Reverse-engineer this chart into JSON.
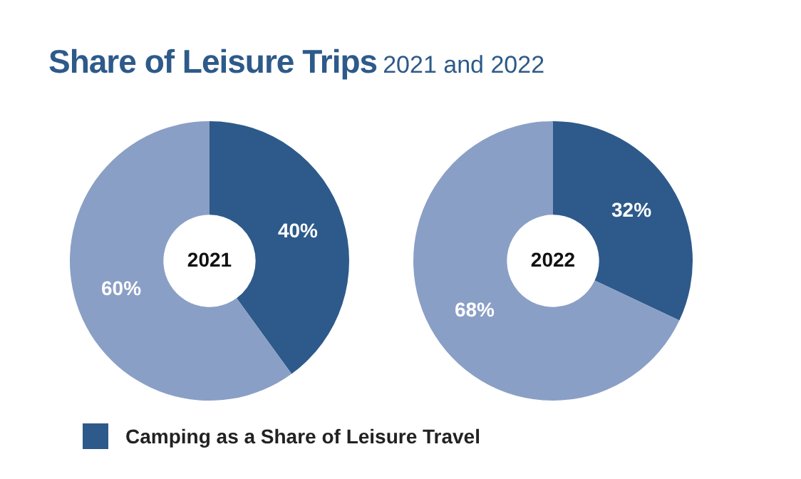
{
  "chart_data": [
    {
      "type": "other",
      "title": "Share of Leisure Trips",
      "subtitle": "2021 and 2022"
    },
    {
      "type": "donut",
      "title": "2021",
      "categories": [
        "Camping as a Share of Leisure Travel",
        null
      ],
      "values": [
        40,
        60
      ],
      "colors": [
        "#2d5a8a",
        "#8a9fc6"
      ],
      "value_labels": [
        "40%",
        "60%"
      ],
      "legend": "bottom"
    },
    {
      "type": "donut",
      "title": "2022",
      "categories": [
        null,
        null
      ],
      "values": [
        32,
        68
      ],
      "colors": [
        "#2d5a8a",
        "#8a9fc6"
      ],
      "value_labels": [
        "32%",
        "68%"
      ]
    }
  ]
}
